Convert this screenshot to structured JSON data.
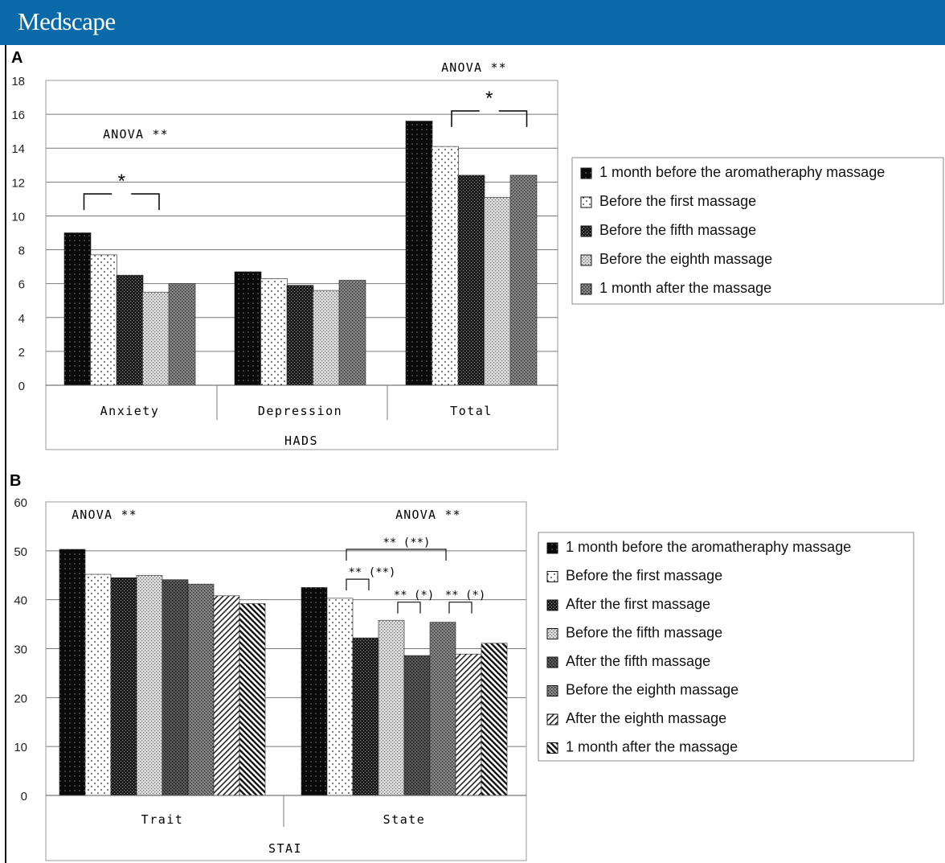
{
  "header": {
    "title": "Medscape"
  },
  "chart_data": [
    {
      "panel": "A",
      "type": "bar",
      "xlabel": "HADS",
      "ylabel": "",
      "ylim": [
        0,
        18
      ],
      "yticks": [
        "0",
        "2",
        "4",
        "6",
        "8",
        "10",
        "12",
        "14",
        "16",
        "18"
      ],
      "categories": [
        "Anxiety",
        "Depression",
        "Total"
      ],
      "series": [
        {
          "name": "1 month before the aromatheraphy massage",
          "values": [
            9.0,
            6.7,
            15.6
          ]
        },
        {
          "name": "Before the first massage",
          "values": [
            7.7,
            6.3,
            14.1
          ]
        },
        {
          "name": "Before the fifth massage",
          "values": [
            6.5,
            5.9,
            12.4
          ]
        },
        {
          "name": "Before the eighth massage",
          "values": [
            5.5,
            5.6,
            11.1
          ]
        },
        {
          "name": "1 month after the massage",
          "values": [
            6.0,
            6.2,
            12.4
          ]
        }
      ],
      "annotations": [
        {
          "text": "ANOVA **",
          "group": "Anxiety"
        },
        {
          "text": "*",
          "group": "Anxiety",
          "from": 0,
          "to": 3,
          "level": 11.3
        },
        {
          "text": "ANOVA **",
          "group": "Total"
        },
        {
          "text": "*",
          "group": "Total",
          "from": 1,
          "to": 4,
          "level": 16.2
        }
      ],
      "legend_position": "right",
      "grid": true
    },
    {
      "panel": "B",
      "type": "bar",
      "xlabel": "STAI",
      "ylabel": "",
      "ylim": [
        0,
        60
      ],
      "yticks": [
        "0",
        "10",
        "20",
        "30",
        "40",
        "50",
        "60"
      ],
      "categories": [
        "Trait",
        "State"
      ],
      "series": [
        {
          "name": "1 month before the aromatheraphy massage",
          "values": [
            50.3,
            42.5
          ]
        },
        {
          "name": "Before the first massage",
          "values": [
            45.2,
            40.3
          ]
        },
        {
          "name": "After the first massage",
          "values": [
            44.5,
            32.2
          ]
        },
        {
          "name": "Before the fifth massage",
          "values": [
            45.0,
            35.8
          ]
        },
        {
          "name": "After the fifth massage",
          "values": [
            44.1,
            28.6
          ]
        },
        {
          "name": "Before the eighth massage",
          "values": [
            43.2,
            35.4
          ]
        },
        {
          "name": "After the eighth massage",
          "values": [
            40.8,
            28.9
          ]
        },
        {
          "name": "1 month after the massage",
          "values": [
            39.2,
            31.1
          ]
        }
      ],
      "annotations": [
        {
          "text": "ANOVA **",
          "group": "Trait"
        },
        {
          "text": "ANOVA **",
          "group": "State"
        },
        {
          "text": "** (**)",
          "group": "State",
          "from": 1,
          "to": 5,
          "level": 50.3
        },
        {
          "text": "** (**)",
          "group": "State",
          "from": 1,
          "to": 2,
          "level": 44.2
        },
        {
          "text": "** (*)",
          "group": "State",
          "from": 3,
          "to": 4,
          "level": 39.5
        },
        {
          "text": "** (*)",
          "group": "State",
          "from": 5,
          "to": 6,
          "level": 39.5
        }
      ],
      "legend_position": "right",
      "grid": true
    }
  ],
  "style": {
    "banner_color": "#0a69a8"
  }
}
